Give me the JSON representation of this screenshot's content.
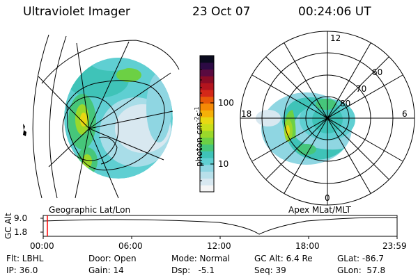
{
  "header": {
    "instrument": "Ultraviolet Imager",
    "date": "23 Oct 07",
    "time": "00:24:06 UT"
  },
  "colorbar": {
    "label_html": "photon cm⁻²s⁻¹",
    "label_parts": [
      "photon cm",
      "-2",
      "s",
      "-1"
    ],
    "ticks": [
      "100",
      "10"
    ],
    "colors": [
      "#f5f5f5",
      "#d8e8f0",
      "#b8e0ea",
      "#8fd6e2",
      "#5fcfd2",
      "#3fc3b8",
      "#46c67a",
      "#6cd044",
      "#9ad82a",
      "#c8de1a",
      "#e8d812",
      "#f5b008",
      "#f58a05",
      "#e85a08",
      "#d42818",
      "#b3141e",
      "#8a0c26",
      "#5a0a40",
      "#2c0a44",
      "#0a0a1e"
    ]
  },
  "left_panel": {
    "caption": "Geographic Lat/Lon"
  },
  "right_panel": {
    "caption": "Apex MLat/MLT",
    "mlt_labels": [
      "12",
      "18",
      "6",
      "0"
    ],
    "lat_labels": [
      "60",
      "70",
      "80"
    ]
  },
  "timeline": {
    "ylabel": "GC Alt",
    "yticks": [
      "9.0",
      "1.8"
    ],
    "xticks": [
      "00:00",
      "06:00",
      "12:00",
      "18:00",
      "23:59"
    ]
  },
  "info": {
    "flt": "Flt: LBHL",
    "ip": "IP: 36.0",
    "door": "Door: Open",
    "gain": "Gain: 14",
    "mode": "Mode: Normal",
    "dsp": "Dsp:   -5.1",
    "gcalt": "GC Alt: 6.4 Re",
    "seq": "Seq: 39",
    "glat": "GLat: -86.7",
    "glon": "GLon:  57.8"
  }
}
